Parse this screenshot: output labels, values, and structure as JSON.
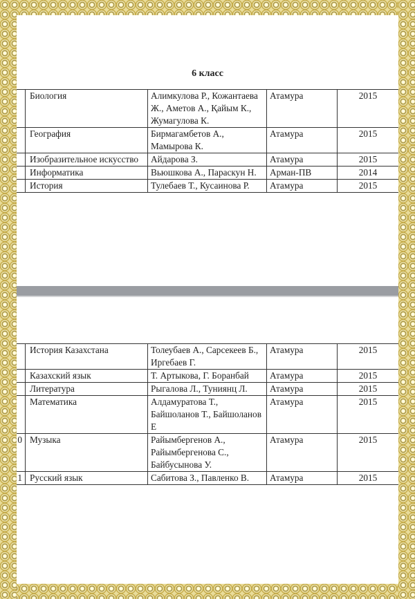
{
  "page1": {
    "heading": "6 класс",
    "rows": [
      {
        "num": "",
        "subject": "Биология",
        "authors": "Алимкулова Р., Кожантаева Ж., Аметов А., Қайым К., Жумагулова К.",
        "publisher": "Атамура",
        "year": "2015"
      },
      {
        "num": "",
        "subject": "География",
        "authors": "Бирмагамбетов А., Мамырова К.",
        "publisher": "Атамура",
        "year": "2015"
      },
      {
        "num": "",
        "subject": "Изобразительное искусство",
        "authors": "Айдарова З.",
        "publisher": "Атамура",
        "year": "2015"
      },
      {
        "num": "",
        "subject": "Информатика",
        "authors": "Вьюшкова А., Параскун Н.",
        "publisher": "Арман-ПВ",
        "year": "2014"
      },
      {
        "num": "",
        "subject": "История",
        "authors": "Тулебаев Т., Кусаинова Р.",
        "publisher": "Атамура",
        "year": "2015"
      }
    ]
  },
  "page2": {
    "rows": [
      {
        "num": "",
        "subject": "История Казахстана",
        "authors": "Толеубаев А., Сарсекеев Б., Иргебаев Г.",
        "publisher": "Атамура",
        "year": "2015"
      },
      {
        "num": "",
        "subject": "Казахский язык",
        "authors": "Т. Артыкова, Г. Боранбай",
        "publisher": "Атамура",
        "year": "2015"
      },
      {
        "num": "",
        "subject": "Литература",
        "authors": "Рыгалова Л., Туниянц Л.",
        "publisher": "Атамура",
        "year": "2015"
      },
      {
        "num": "",
        "subject": "Математика",
        "authors": "Алдамуратова Т., Байшоланов Т., Байшоланов Е",
        "publisher": "Атамура",
        "year": "2015"
      },
      {
        "num": "0",
        "subject": "Музыка",
        "authors": "Райымбергенов А., Райымбергенова С., Байбусынова У.",
        "publisher": "Атамура",
        "year": "2015"
      },
      {
        "num": "1",
        "subject": "Русский язык",
        "authors": "Сабитова З., Павленко В.",
        "publisher": "Атамура",
        "year": "2015"
      }
    ]
  }
}
